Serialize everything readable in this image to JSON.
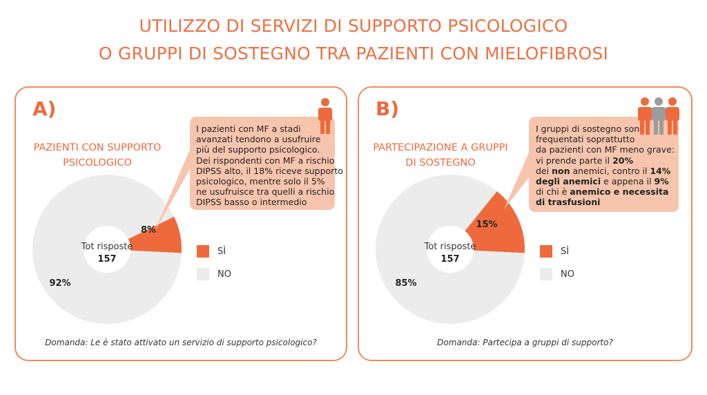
{
  "title": {
    "line1": "UTILIZZO DI SERVIZI DI SUPPORTO PSICOLOGICO",
    "line2": "O GRUPPI DI SOSTEGNO TRA PAZIENTI CON MIELOFIBROSI"
  },
  "colors": {
    "accent": "#ee6a3c",
    "callout_bg": "#f7c4ad",
    "no_slice": "#ececec",
    "icon_grey": "#9c9c9c"
  },
  "panel_a": {
    "letter": "A)",
    "heading_line1": "PAZIENTI CON SUPPORTO",
    "heading_line2": "PSICOLOGICO",
    "center_label": "Tot risposte",
    "center_value": "157",
    "yes_label": "8%",
    "no_label": "92%",
    "legend_yes": "SÌ",
    "legend_no": "NO",
    "callout_lines": [
      "I pazienti con MF a stadi",
      "avanzati tendono a usufruire",
      "più del supporto psicologico.",
      "Dei rispondenti con MF a rischio",
      "DIPSS alto, il 18% riceve supporto",
      "psicologico, mentre solo il 5%",
      "ne usufruisce tra quelli a rischio",
      "DIPSS basso o intermedio"
    ],
    "question": "Domanda: Le è stato attivato un servizio di supporto psicologico?",
    "icon": "person-icon"
  },
  "panel_b": {
    "letter": "B)",
    "heading_line1": "PARTECIPAZIONE A GRUPPI",
    "heading_line2": "DI SOSTEGNO",
    "center_label": "Tot risposte",
    "center_value": "157",
    "yes_label": "15%",
    "no_label": "85%",
    "legend_yes": "SÌ",
    "legend_no": "NO",
    "callout": {
      "l1": "I gruppi di sostegno sono",
      "l2": "frequentati soprattutto",
      "l3": "da pazienti con MF meno grave:",
      "l4a": "vi prende parte il ",
      "l4b": "20%",
      "l5a": "dei ",
      "l5b": "non",
      "l5c": " anemici, contro il ",
      "l5d": "14%",
      "l6a": "degli anemici",
      "l6b": " e appena il ",
      "l6c": "9%",
      "l7a": "di chi è ",
      "l7b": "anemico e necessita",
      "l8": "di trasfusioni"
    },
    "question": "Domanda: Partecipa a gruppi di supporto?",
    "icon": "group-icon"
  },
  "chart_data": [
    {
      "type": "pie",
      "title": "PAZIENTI CON SUPPORTO PSICOLOGICO",
      "categories": [
        "SÌ",
        "NO"
      ],
      "values": [
        8,
        92
      ],
      "unit": "%",
      "total_responses": 157,
      "colors": [
        "#ee6a3c",
        "#ececec"
      ]
    },
    {
      "type": "pie",
      "title": "PARTECIPAZIONE A GRUPPI DI SOSTEGNO",
      "categories": [
        "SÌ",
        "NO"
      ],
      "values": [
        15,
        85
      ],
      "unit": "%",
      "total_responses": 157,
      "colors": [
        "#ee6a3c",
        "#ececec"
      ]
    }
  ]
}
